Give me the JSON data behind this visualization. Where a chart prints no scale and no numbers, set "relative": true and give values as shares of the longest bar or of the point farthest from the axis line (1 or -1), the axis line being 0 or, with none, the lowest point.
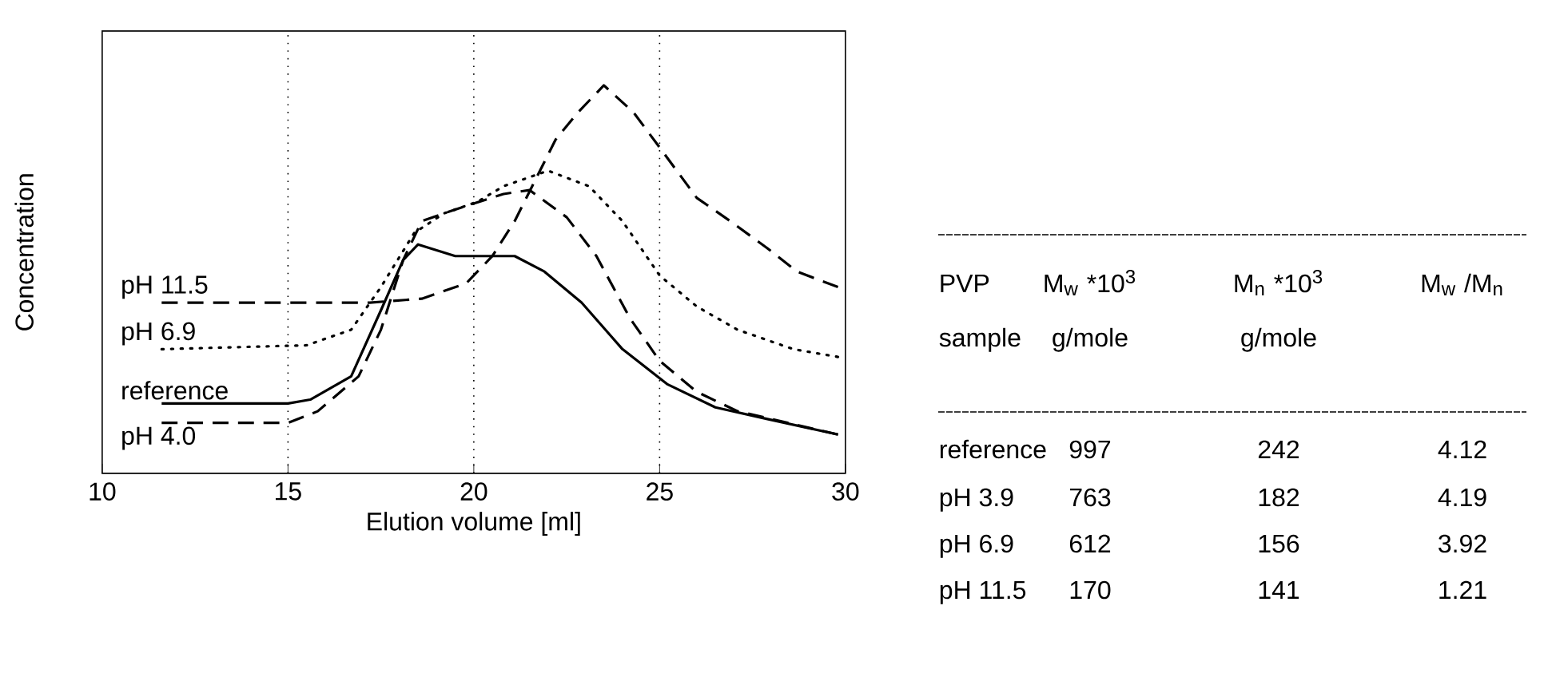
{
  "chart_data": [
    {
      "type": "line",
      "relative": true,
      "xlabel": "Elution volume [ml]",
      "ylabel": "Concentration",
      "xlim": [
        10,
        30
      ],
      "xticks": [
        10,
        15,
        20,
        25,
        30
      ],
      "series": [
        {
          "name": "pH 11.5",
          "color": "#000000",
          "line_style": "dashed",
          "x": [
            11.6,
            15,
            17.2,
            18.6,
            19.8,
            20.5,
            21.1,
            22.2,
            22.8,
            23.5,
            24.3,
            25,
            26,
            26.9,
            27.9,
            28.7,
            29.8
          ],
          "values": [
            0.44,
            0.44,
            0.44,
            0.45,
            0.49,
            0.56,
            0.65,
            0.86,
            0.93,
            1,
            0.93,
            0.84,
            0.71,
            0.65,
            0.58,
            0.52,
            0.48
          ]
        },
        {
          "name": "pH 6.9",
          "color": "#000000",
          "line_style": "dotted",
          "x": [
            11.6,
            15.5,
            16.7,
            17.5,
            18.4,
            19.2,
            20.1,
            20.8,
            22,
            23.1,
            24,
            25,
            26,
            27.1,
            28.6,
            29.8
          ],
          "values": [
            0.32,
            0.33,
            0.37,
            0.48,
            0.62,
            0.67,
            0.7,
            0.74,
            0.78,
            0.74,
            0.65,
            0.51,
            0.43,
            0.37,
            0.32,
            0.3
          ]
        },
        {
          "name": "reference",
          "color": "#000000",
          "line_style": "solid",
          "x": [
            11.6,
            15,
            15.6,
            16.7,
            17.5,
            18.1,
            18.5,
            19.5,
            20.5,
            21.1,
            21.9,
            22.9,
            24,
            25.2,
            26.5,
            27.9,
            29.8
          ],
          "values": [
            0.18,
            0.18,
            0.19,
            0.25,
            0.42,
            0.55,
            0.59,
            0.56,
            0.56,
            0.56,
            0.52,
            0.44,
            0.32,
            0.23,
            0.17,
            0.14,
            0.1
          ]
        },
        {
          "name": "pH 4.0",
          "color": "#000000",
          "line_style": "dashed",
          "x": [
            11.6,
            15,
            15.8,
            16.9,
            17.5,
            18.1,
            18.6,
            19.5,
            20.8,
            21.5,
            22.5,
            23.3,
            24.2,
            25,
            26,
            27.1,
            29.8
          ],
          "values": [
            0.13,
            0.13,
            0.16,
            0.25,
            0.37,
            0.55,
            0.65,
            0.68,
            0.72,
            0.73,
            0.66,
            0.56,
            0.4,
            0.29,
            0.21,
            0.16,
            0.1
          ]
        }
      ],
      "ref_lines": [
        {
          "axis": "x",
          "value": 15,
          "color": "#000000",
          "line_style": "dotted"
        },
        {
          "axis": "x",
          "value": 20,
          "color": "#000000",
          "line_style": "dotted"
        },
        {
          "axis": "x",
          "value": 25,
          "color": "#000000",
          "line_style": "dotted"
        }
      ]
    },
    {
      "type": "other",
      "annotations": [
        "PVP",
        "M$_{w}$ *10$^{3}$",
        "M$_{n}$ *10$^{3}$",
        "M$_{w}$ /M$_{n}$",
        "sample",
        "g/mole",
        "g/mole",
        "reference",
        "997",
        "242",
        "4.12",
        "pH 3.9",
        "763",
        "182",
        "4.19",
        "pH 6.9",
        "612",
        "156",
        "3.92",
        "pH 11.5",
        "170",
        "141",
        "1.21"
      ]
    }
  ]
}
